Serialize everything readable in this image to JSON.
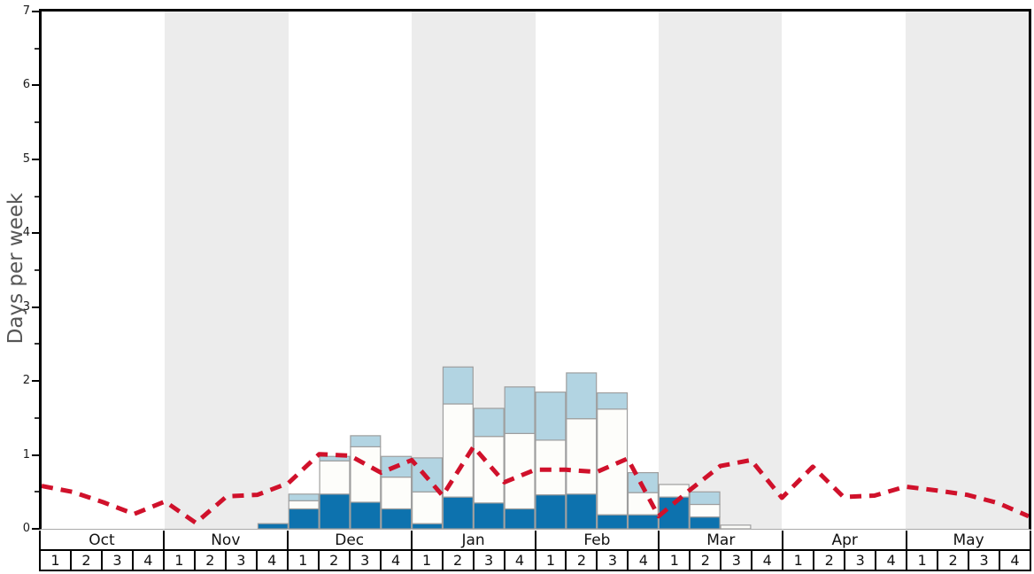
{
  "colors": {
    "band": "#ececec",
    "bar_border": "#9e9e9e",
    "axis": "#000000",
    "zero_line": "#aaaaaa",
    "tick_label": "#1a1a1a",
    "ylabel_text": "#555555",
    "dark_blue": "#0d72ae",
    "white_bar": "#fdfdfa",
    "light_blue": "#b2d4e2",
    "red_line": "#d0112b"
  },
  "chart_data": {
    "type": "stacked-bar+line",
    "title": "",
    "ylabel": "Days per week",
    "xlabel": "",
    "ylim": [
      0,
      7
    ],
    "y_major_ticks": [
      0,
      1,
      2,
      3,
      4,
      5,
      6,
      7
    ],
    "y_minor_tick_step": 0.5,
    "grid": "off",
    "months": [
      "Oct",
      "Nov",
      "Dec",
      "Jan",
      "Feb",
      "Mar",
      "Apr",
      "May"
    ],
    "week_labels": [
      "1",
      "2",
      "3",
      "4"
    ],
    "weeks_per_month": 4,
    "shaded_months": [
      "Nov",
      "Jan",
      "Mar",
      "May"
    ],
    "series": [
      {
        "name": "dark-blue-days",
        "color": "#0d72ae",
        "values": [
          0,
          0,
          0,
          0,
          0,
          0,
          0,
          0.07,
          0.27,
          0.47,
          0.36,
          0.27,
          0.07,
          0.43,
          0.35,
          0.27,
          0.46,
          0.47,
          0.19,
          0.19,
          0.43,
          0.16,
          0,
          0,
          0,
          0,
          0,
          0,
          0,
          0,
          0,
          0
        ]
      },
      {
        "name": "white-days",
        "color": "#fdfdfa",
        "values": [
          0,
          0,
          0,
          0,
          0,
          0,
          0,
          0,
          0.11,
          0.45,
          0.75,
          0.43,
          0.43,
          1.26,
          0.9,
          1.02,
          0.74,
          1.02,
          1.43,
          0.3,
          0.17,
          0.17,
          0.05,
          0,
          0,
          0,
          0,
          0,
          0,
          0,
          0,
          0
        ]
      },
      {
        "name": "light-blue-days",
        "color": "#b2d4e2",
        "values": [
          0,
          0,
          0,
          0,
          0,
          0,
          0,
          0,
          0.09,
          0.06,
          0.15,
          0.28,
          0.46,
          0.5,
          0.38,
          0.63,
          0.65,
          0.62,
          0.22,
          0.27,
          0,
          0.17,
          0,
          0,
          0,
          0,
          0,
          0,
          0,
          0,
          0,
          0
        ]
      }
    ],
    "line": {
      "name": "red-dashed-trend",
      "color": "#d0112b",
      "style": "dashed",
      "x_positions": "week-boundaries",
      "values": [
        0.58,
        0.5,
        0.36,
        0.2,
        0.37,
        0.08,
        0.44,
        0.46,
        0.62,
        1.01,
        0.99,
        0.76,
        0.93,
        0.45,
        1.11,
        0.63,
        0.8,
        0.8,
        0.77,
        0.95,
        0.17,
        0.52,
        0.85,
        0.93,
        0.42,
        0.84,
        0.43,
        0.45,
        0.57,
        0.52,
        0.46,
        0.35,
        0.17
      ]
    }
  }
}
